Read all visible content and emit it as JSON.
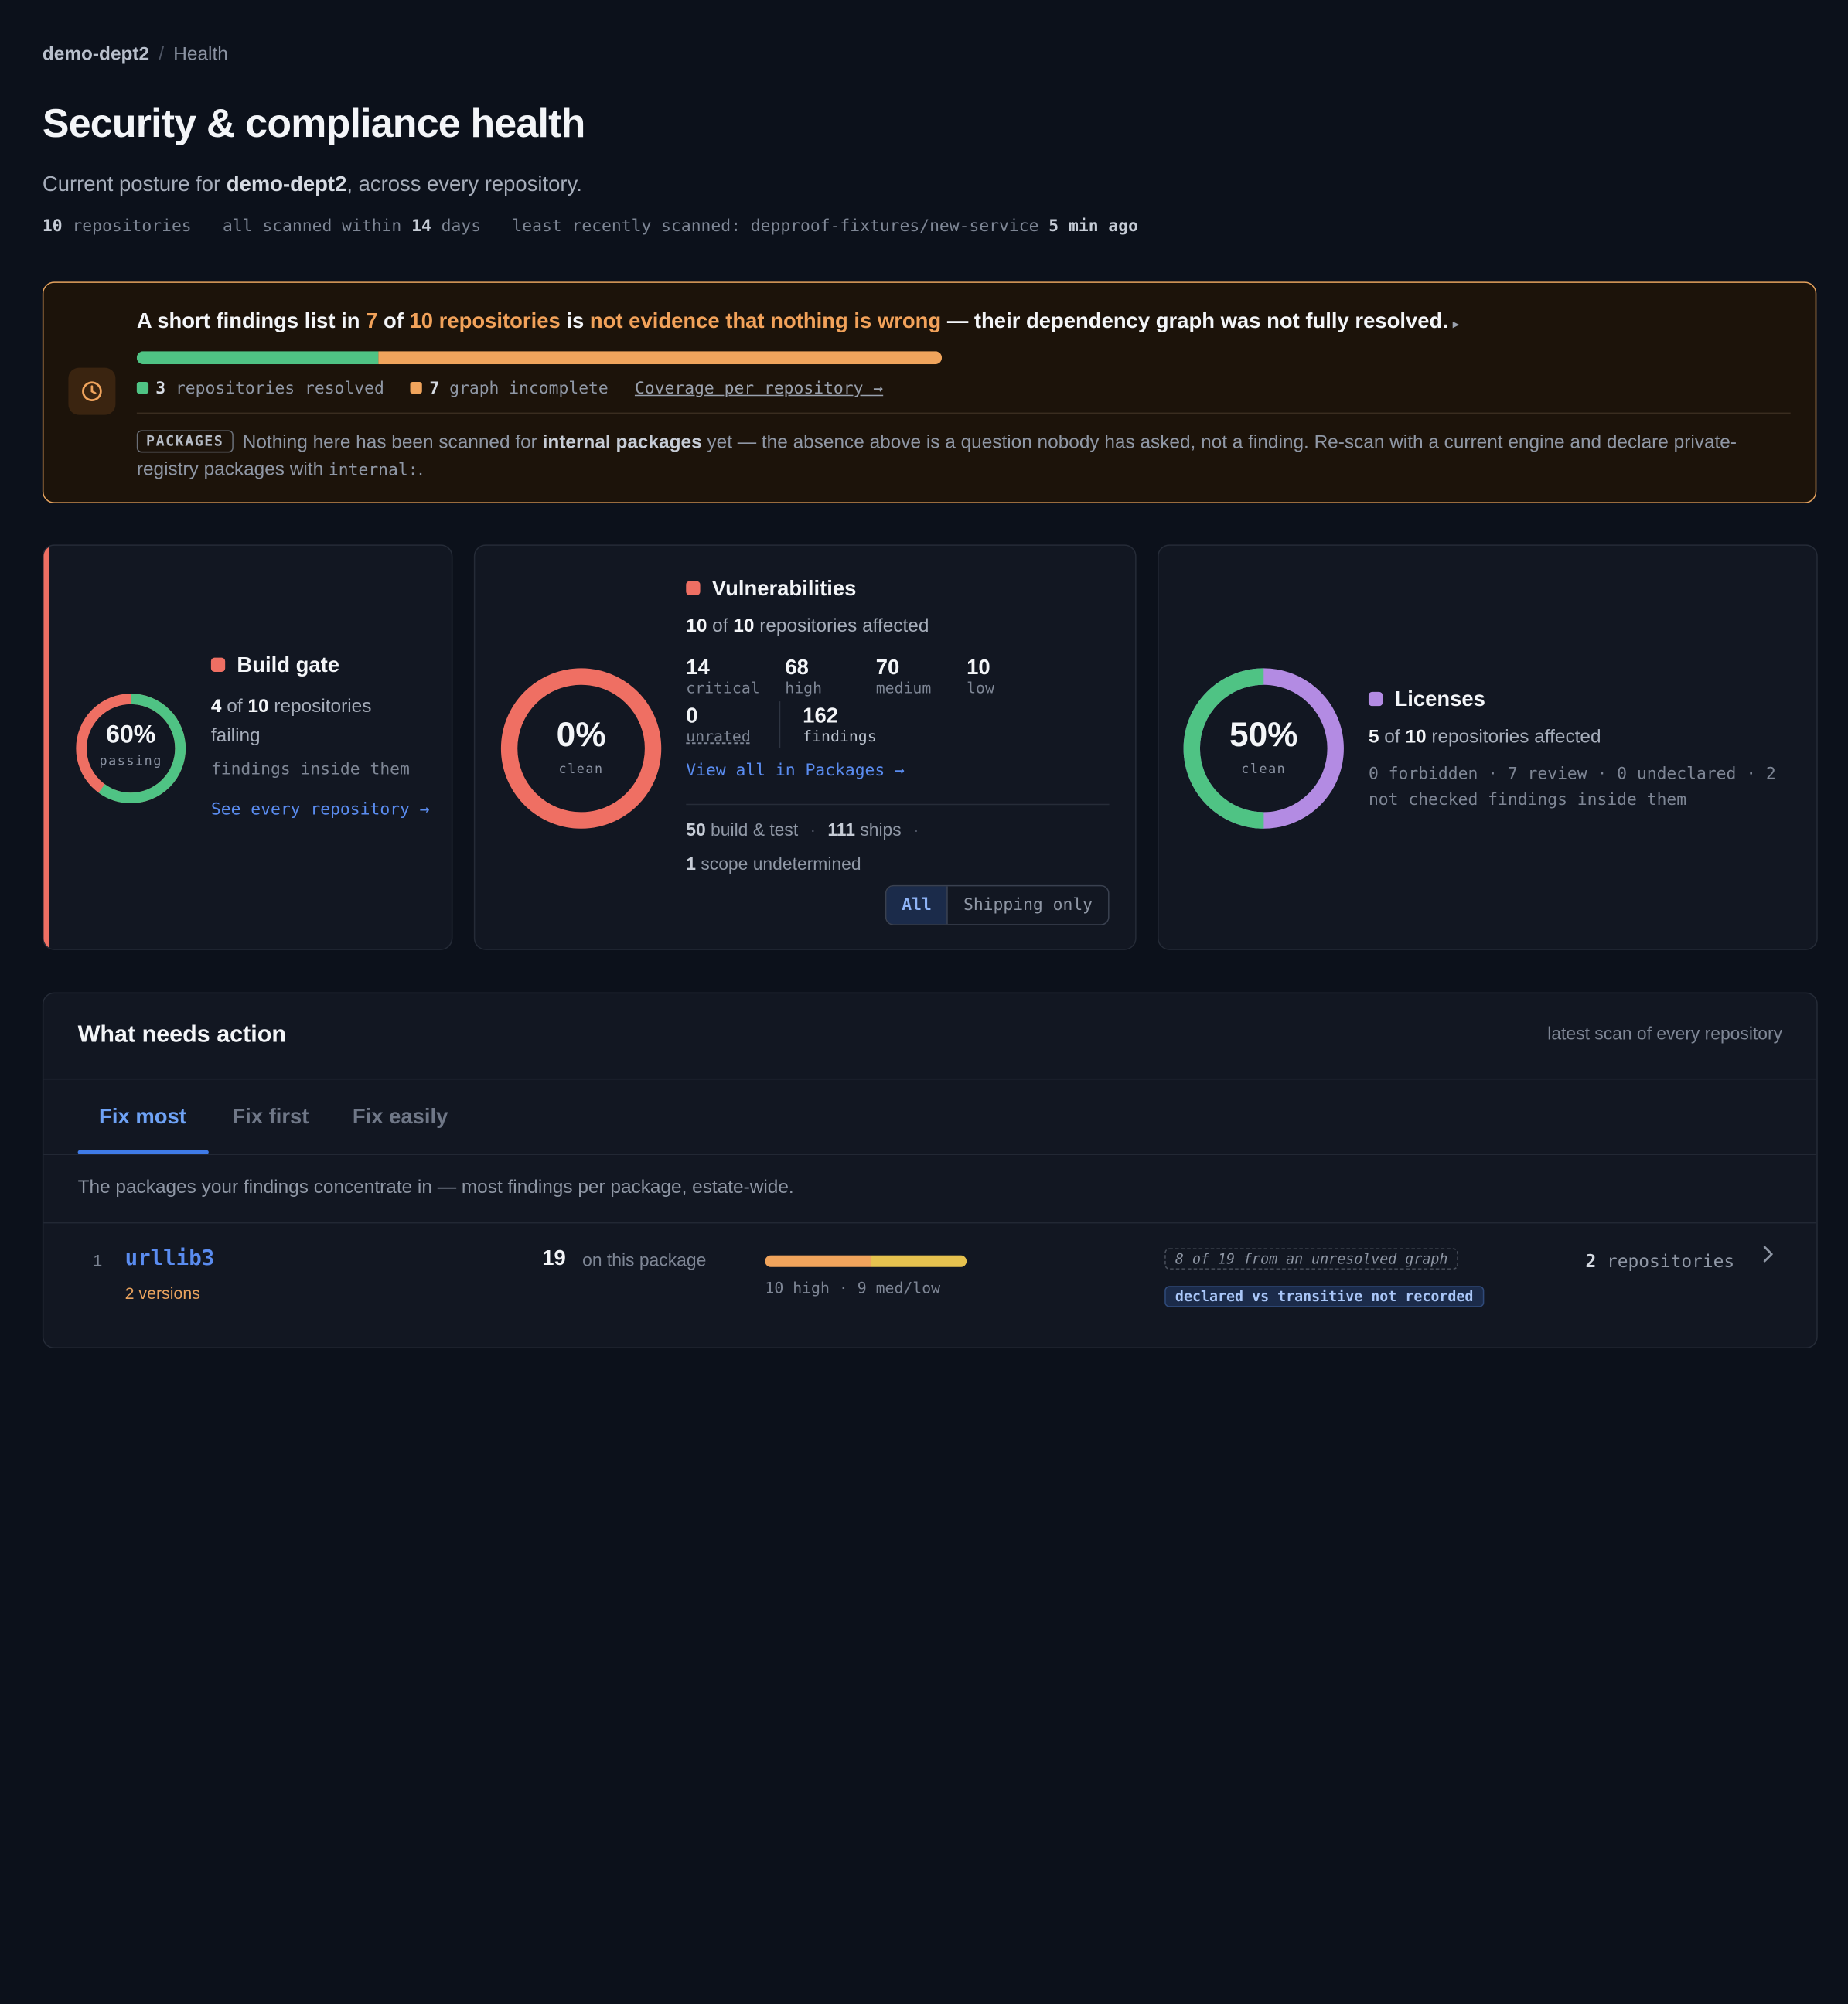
{
  "breadcrumb": {
    "org": "demo-dept2",
    "separator": "/",
    "page": "Health"
  },
  "header": {
    "title": "Security & compliance health",
    "subtitle_prefix": "Current posture for ",
    "subtitle_org": "demo-dept2",
    "subtitle_suffix": ", across every repository."
  },
  "meta": {
    "repo_count": "10",
    "repo_label": "repositories",
    "scanned_prefix": "all scanned within",
    "scanned_days": "14",
    "scanned_suffix": "days",
    "least_prefix": "least recently scanned: depproof-fixtures/new-service",
    "least_time": "5 min ago"
  },
  "banner": {
    "h1": "A short findings list in ",
    "h_count": "7",
    "h2": " of ",
    "h_total": "10 repositories",
    "h3": " is ",
    "h_warn": "not evidence that nothing is wrong",
    "h4": " — their dependency graph was not fully resolved.",
    "resolved_fraction": 0.3,
    "resolved_count": "3",
    "resolved_label": "repositories resolved",
    "incomplete_count": "7",
    "incomplete_label": "graph incomplete",
    "coverage_link": "Coverage per repository →",
    "packages_tag": "PACKAGES",
    "packages_p1": "Nothing here has been scanned for ",
    "packages_b": "internal packages",
    "packages_p2": " yet — the absence above is a question nobody has asked, not a finding. Re-scan with a current engine and declare private-registry packages with ",
    "packages_code": "internal:",
    "packages_p3": "."
  },
  "build_gate": {
    "percent": "60%",
    "percent_value": 60,
    "ring_label": "passing",
    "title": "Build gate",
    "failing_count": "4",
    "of": "of",
    "total": "10",
    "failing_label": "repositories failing",
    "findings_note": "findings inside them",
    "link": "See every repository →"
  },
  "vulnerabilities": {
    "percent": "0%",
    "percent_value": 0,
    "ring_label": "clean",
    "title": "Vulnerabilities",
    "affected": "10",
    "of": "of",
    "total": "10",
    "affected_label": "repositories affected",
    "critical": "14",
    "critical_label": "critical",
    "high": "68",
    "high_label": "high",
    "medium": "70",
    "medium_label": "medium",
    "low": "10",
    "low_label": "low",
    "unrated": "0",
    "unrated_label": "unrated",
    "findings": "162",
    "findings_label": "findings",
    "link": "View all in Packages →",
    "build_test": "50",
    "build_test_label": "build & test",
    "ships": "111",
    "ships_label": "ships",
    "scope": "1",
    "scope_label": "scope undetermined",
    "toggle_all": "All",
    "toggle_shipping": "Shipping only"
  },
  "licenses": {
    "percent": "50%",
    "percent_value": 50,
    "ring_label": "clean",
    "title": "Licenses",
    "affected": "5",
    "of": "of",
    "total": "10",
    "affected_label": "repositories affected",
    "detail": "0 forbidden · 7 review · 0 undeclared · 2 not checked findings inside them"
  },
  "actions": {
    "title": "What needs action",
    "right_note": "latest scan of every repository",
    "tabs": [
      "Fix most",
      "Fix first",
      "Fix easily"
    ],
    "description": "The packages your findings concentrate in — most findings per package, estate-wide.",
    "rows": [
      {
        "rank": "1",
        "package": "urllib3",
        "versions": "2 versions",
        "count": "19",
        "count_label": "on this package",
        "high_value": 10,
        "medlow_value": 9,
        "bar_label": "10 high · 9 med/low",
        "chip_unresolved": "8 of 19 from an unresolved graph",
        "chip_declared": "declared vs transitive not recorded",
        "repos": "2",
        "repos_label": "repositories"
      }
    ]
  },
  "colors": {
    "fail": "#ef6f63",
    "pass": "#4fc384",
    "warn": "#f0a45c",
    "license": "#b38be3",
    "link": "#5a8cf0"
  }
}
